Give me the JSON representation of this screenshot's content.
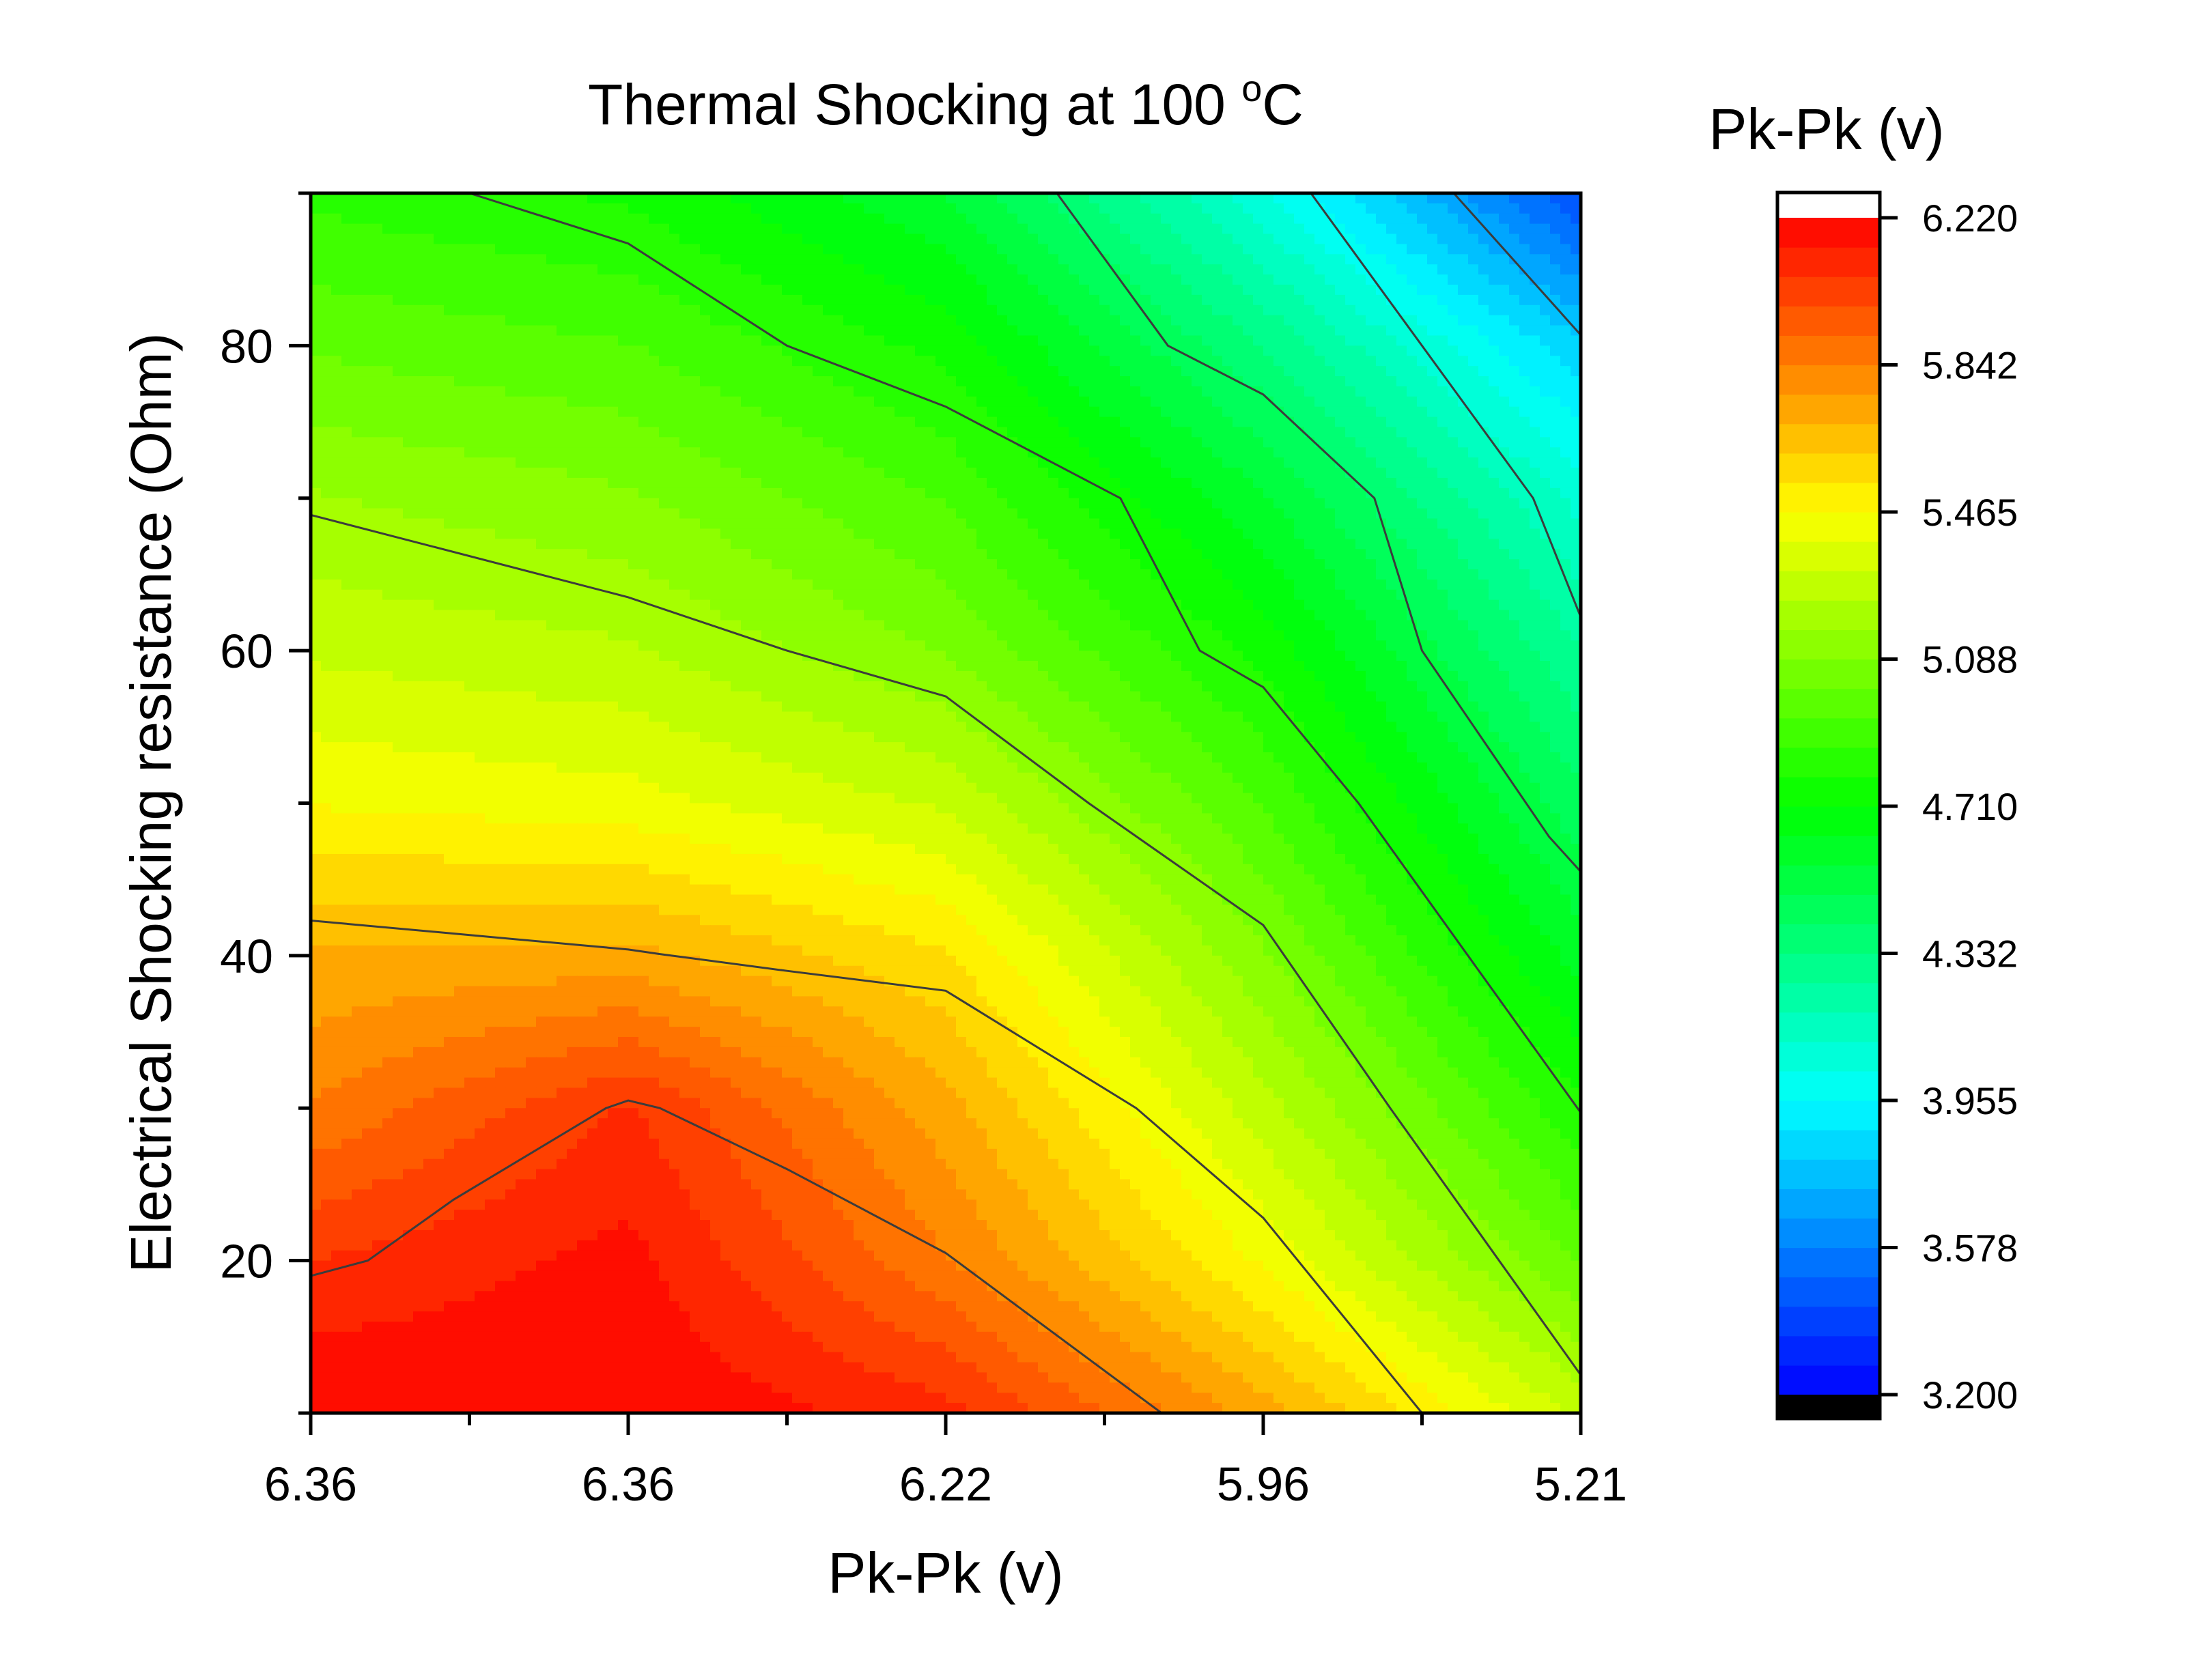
{
  "chart_data": {
    "type": "heatmap",
    "subtype": "filled-contour",
    "title_text": "Thermal Shocking at 100 ",
    "title_sup": "o",
    "title_unit": "C",
    "xlabel": "Pk-Pk (v)",
    "ylabel": "Electrical Shocking resistance (Ohm)",
    "x_tick_labels": [
      "6.36",
      "6.36",
      "6.22",
      "5.96",
      "5.21"
    ],
    "x_range": [
      0,
      4
    ],
    "ylim": [
      10,
      90
    ],
    "y_ticks": [
      20,
      40,
      60,
      80
    ],
    "y_tick_labels": [
      "20",
      "40",
      "60",
      "80"
    ],
    "colorbar": {
      "title": "Pk-Pk (v)",
      "min": 3.2,
      "max": 6.22,
      "levels": 40,
      "tick_labels": [
        "6.220",
        "5.842",
        "5.465",
        "5.088",
        "4.710",
        "4.332",
        "3.955",
        "3.578",
        "3.200"
      ],
      "over_color": "#ffffff",
      "under_color": "#000000"
    },
    "colormap": [
      "#0000ff",
      "#0080ff",
      "#00ffff",
      "#00ff80",
      "#00ff00",
      "#80ff00",
      "#ffff00",
      "#ff8000",
      "#ff0000"
    ],
    "grid_x": [
      0,
      1,
      2,
      3,
      4
    ],
    "grid_y": [
      10,
      20,
      30,
      40,
      50,
      60,
      70,
      80,
      90
    ],
    "z": [
      [
        6.22,
        6.22,
        6.1,
        5.73,
        5.3
      ],
      [
        6.07,
        6.17,
        5.85,
        5.45,
        5.0
      ],
      [
        5.85,
        6.08,
        5.72,
        5.27,
        4.8
      ],
      [
        5.7,
        5.72,
        5.55,
        5.1,
        4.6
      ],
      [
        5.46,
        5.42,
        5.3,
        4.93,
        4.43
      ],
      [
        5.3,
        5.25,
        5.08,
        4.76,
        4.26
      ],
      [
        5.17,
        5.1,
        4.93,
        4.57,
        4.08
      ],
      [
        5.0,
        4.94,
        4.76,
        4.33,
        3.82
      ],
      [
        4.84,
        4.77,
        4.56,
        4.05,
        3.42
      ]
    ],
    "contour_lines": [
      {
        "level": 5.88,
        "points": [
          [
            0,
            19
          ],
          [
            0.18,
            20
          ],
          [
            0.45,
            24
          ],
          [
            0.93,
            30
          ],
          [
            1.0,
            30.5
          ],
          [
            1.1,
            30
          ],
          [
            1.5,
            26
          ],
          [
            2.0,
            20.5
          ],
          [
            2.68,
            10
          ]
        ]
      },
      {
        "level": 5.46,
        "points": [
          [
            0,
            42.3
          ],
          [
            1.0,
            40.4
          ],
          [
            1.1,
            40.1
          ],
          [
            1.5,
            39
          ],
          [
            2.0,
            37.7
          ],
          [
            2.6,
            30
          ],
          [
            3.0,
            22.8
          ],
          [
            3.5,
            10
          ]
        ]
      },
      {
        "level": 5.09,
        "points": [
          [
            0,
            68.9
          ],
          [
            1.0,
            63.5
          ],
          [
            1.5,
            60
          ],
          [
            2.0,
            57.0
          ],
          [
            2.45,
            50
          ],
          [
            3.0,
            42.0
          ],
          [
            3.4,
            30
          ],
          [
            4.0,
            12.5
          ]
        ]
      },
      {
        "level": 4.71,
        "points": [
          [
            0.5,
            90
          ],
          [
            1.0,
            86.7
          ],
          [
            1.5,
            80
          ],
          [
            2.0,
            76.0
          ],
          [
            2.55,
            70
          ],
          [
            2.8,
            60
          ],
          [
            3.0,
            57.6
          ],
          [
            3.3,
            50
          ],
          [
            4.0,
            29.7
          ]
        ]
      },
      {
        "level": 4.33,
        "points": [
          [
            2.35,
            90
          ],
          [
            2.7,
            80
          ],
          [
            3.0,
            76.8
          ],
          [
            3.35,
            70
          ],
          [
            3.5,
            60
          ],
          [
            3.9,
            47.8
          ],
          [
            4.0,
            45.5
          ]
        ]
      },
      {
        "level": 3.96,
        "points": [
          [
            3.15,
            90
          ],
          [
            3.5,
            80
          ],
          [
            3.85,
            70
          ],
          [
            4.0,
            62.2
          ]
        ]
      },
      {
        "level": 3.58,
        "points": [
          [
            3.6,
            90
          ],
          [
            4.0,
            80.7
          ]
        ]
      }
    ]
  }
}
